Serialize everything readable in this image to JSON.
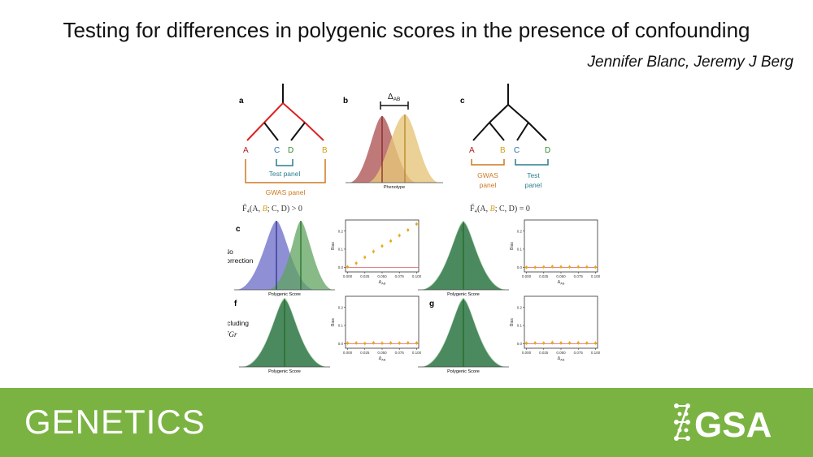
{
  "title": "Testing for differences in polygenic scores in the presence of confounding",
  "authors": "Jennifer Blanc, Jeremy J Berg",
  "figure": {
    "tree_a": {
      "panel": "a",
      "labels": {
        "A": "A",
        "B": "B",
        "C": "C",
        "D": "D"
      },
      "test_panel": "Test panel",
      "gwas_panel": "GWAS panel",
      "stat_prefix": "F̃₄(A, ",
      "stat_B": "B",
      "stat_suffix": "; C, D) > 0"
    },
    "phen_b": {
      "panel": "b",
      "delta": "Δ",
      "delta_sub": "AB",
      "xlabel": "Phenotype"
    },
    "tree_c": {
      "panel": "c",
      "labels": {
        "A": "A",
        "B": "B",
        "C": "C",
        "D": "D"
      },
      "gwas_panel": [
        "GWAS",
        "panel"
      ],
      "test_panel": [
        "Test",
        "panel"
      ],
      "stat_prefix": "F̃₄(A, ",
      "stat_B": "B",
      "stat_suffix": "; C, D) = 0"
    },
    "row_labels": {
      "no_correction": [
        "No",
        "correction"
      ],
      "including": [
        "Including"
      ],
      "including_math": "F̂Gr"
    },
    "density_panels": [
      {
        "panel": "c",
        "xlabel": "Polygenic Score"
      },
      {
        "panel": "e",
        "xlabel": "Polygenic Score"
      },
      {
        "panel": "f",
        "xlabel": "Polygenic Score"
      },
      {
        "panel": "g",
        "xlabel": "Polygenic Score"
      }
    ],
    "colors": {
      "A": "#b22222",
      "B": "#d4a017",
      "C": "#1e6fb3",
      "D": "#2e8b2e",
      "tree_red": "#dd2222",
      "gwas_bracket": "#cc7a22",
      "test_bracket": "#2a7f8f",
      "blue_density": "#6a6ac8",
      "green_density": "#3f7f55",
      "tan_density": "#e6c67a",
      "rose_density": "#b05858",
      "bias_point": "#e6a817",
      "footer": "#7ab342"
    }
  },
  "chart_data": [
    {
      "type": "scatter",
      "name": "bias-no-correction-confounded",
      "x": [
        0,
        0.0125,
        0.025,
        0.0375,
        0.05,
        0.0625,
        0.075,
        0.0875,
        0.1
      ],
      "y": [
        0.003,
        0.023,
        0.055,
        0.087,
        0.117,
        0.145,
        0.175,
        0.205,
        0.238
      ],
      "xlim": [
        -0.003,
        0.103
      ],
      "ylim": [
        -0.025,
        0.26
      ],
      "xticks": [
        "0.000",
        "0.025",
        "0.050",
        "0.075",
        "0.100"
      ],
      "yticks": [
        "0.0",
        "0.1",
        "0.2"
      ],
      "ylabel": "Bias",
      "xlabel": "Δ",
      "xlabel_sub": "AB"
    },
    {
      "type": "scatter",
      "name": "bias-no-correction-unconfounded",
      "x": [
        0,
        0.0125,
        0.025,
        0.0375,
        0.05,
        0.0625,
        0.075,
        0.0875,
        0.1
      ],
      "y": [
        0.0,
        0.0,
        0.002,
        0.004,
        0.003,
        0.002,
        0.003,
        0.002,
        0.001
      ],
      "xlim": [
        -0.003,
        0.103
      ],
      "ylim": [
        -0.025,
        0.26
      ],
      "xticks": [
        "0.000",
        "0.025",
        "0.050",
        "0.075",
        "0.100"
      ],
      "yticks": [
        "0.0",
        "0.1",
        "0.2"
      ],
      "ylabel": "Bias",
      "xlabel": "Δ",
      "xlabel_sub": "AB"
    },
    {
      "type": "scatter",
      "name": "bias-including-confounded",
      "x": [
        0,
        0.0125,
        0.025,
        0.0375,
        0.05,
        0.0625,
        0.075,
        0.0875,
        0.1
      ],
      "y": [
        0.003,
        0.004,
        0.001,
        0.005,
        0.002,
        0.004,
        0.003,
        0.005,
        0.004
      ],
      "xlim": [
        -0.003,
        0.103
      ],
      "ylim": [
        -0.025,
        0.26
      ],
      "xticks": [
        "0.000",
        "0.025",
        "0.050",
        "0.075",
        "0.100"
      ],
      "yticks": [
        "0.0",
        "0.1",
        "0.2"
      ],
      "ylabel": "Bias",
      "xlabel": "Δ",
      "xlabel_sub": "AB"
    },
    {
      "type": "scatter",
      "name": "bias-including-unconfounded",
      "x": [
        0,
        0.0125,
        0.025,
        0.0375,
        0.05,
        0.0625,
        0.075,
        0.0875,
        0.1
      ],
      "y": [
        0.002,
        0.004,
        0.003,
        0.006,
        0.004,
        0.004,
        0.005,
        0.004,
        0.003
      ],
      "xlim": [
        -0.003,
        0.103
      ],
      "ylim": [
        -0.025,
        0.26
      ],
      "xticks": [
        "0.000",
        "0.025",
        "0.050",
        "0.075",
        "0.100"
      ],
      "yticks": [
        "0.0",
        "0.1",
        "0.2"
      ],
      "ylabel": "Bias",
      "xlabel": "Δ",
      "xlabel_sub": "AB"
    }
  ],
  "footer": {
    "journal": "GENETICS",
    "logo": "GSA"
  }
}
